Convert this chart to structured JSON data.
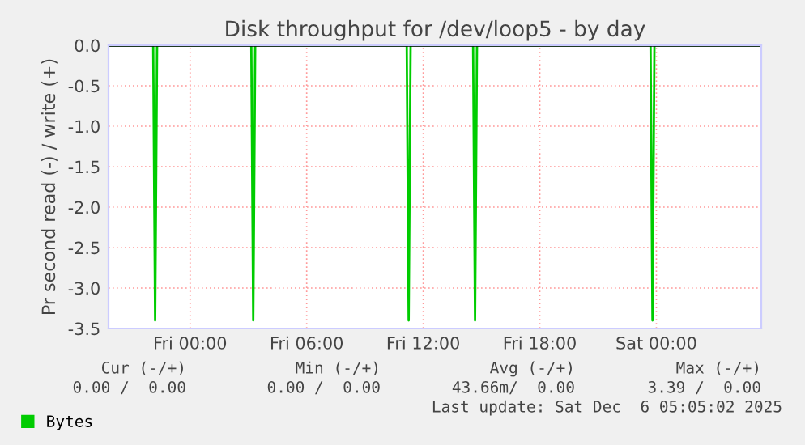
{
  "chart_data": {
    "type": "line",
    "title": "Disk throughput for /dev/loop5 - by day",
    "ylabel": "Pr second read (-) / write (+)",
    "series": [
      {
        "name": "Bytes",
        "color": "#00cc00",
        "x": [
          "2025-12-04T19:48",
          "2025-12-04T22:06",
          "2025-12-04T22:12",
          "2025-12-04T22:18",
          "2025-12-05T03:09",
          "2025-12-05T03:15",
          "2025-12-05T03:21",
          "2025-12-05T11:09",
          "2025-12-05T11:15",
          "2025-12-05T11:21",
          "2025-12-05T14:34",
          "2025-12-05T14:40",
          "2025-12-05T14:46",
          "2025-12-05T23:42",
          "2025-12-05T23:48",
          "2025-12-05T23:54",
          "2025-12-06T05:24"
        ],
        "values": [
          0,
          0,
          -3.4,
          0,
          0,
          -3.4,
          0,
          0,
          -3.4,
          0,
          0,
          -3.4,
          0,
          0,
          -3.4,
          0,
          0
        ]
      }
    ],
    "xlim": [
      "2025-12-04T19:48",
      "2025-12-06T05:24"
    ],
    "xticks": [
      {
        "value": "2025-12-05T00:00",
        "label": "Fri 00:00"
      },
      {
        "value": "2025-12-05T06:00",
        "label": "Fri 06:00"
      },
      {
        "value": "2025-12-05T12:00",
        "label": "Fri 12:00"
      },
      {
        "value": "2025-12-05T18:00",
        "label": "Fri 18:00"
      },
      {
        "value": "2025-12-06T00:00",
        "label": "Sat 00:00"
      }
    ],
    "ylim": [
      -3.5,
      0
    ],
    "yticks": [
      {
        "value": -3.5,
        "label": "-3.5"
      },
      {
        "value": -3.0,
        "label": "-3.0"
      },
      {
        "value": -2.5,
        "label": "-2.5"
      },
      {
        "value": -2.0,
        "label": "-2.0"
      },
      {
        "value": -1.5,
        "label": "-1.5"
      },
      {
        "value": -1.0,
        "label": "-1.0"
      },
      {
        "value": -0.5,
        "label": "-0.5"
      },
      {
        "value": 0,
        "label": "0.0"
      }
    ],
    "grid": true,
    "legend": "bottom left",
    "annotations": [
      "Cur (-/+)",
      "Min (-/+)",
      "Avg (-/+)",
      "Max (-/+)",
      "0.00 /  0.00",
      "0.00 /  0.00",
      "43.66m/  0.00",
      "3.39 /  0.00",
      "Last update: Sat Dec  6 05:05:02 2025"
    ]
  }
}
